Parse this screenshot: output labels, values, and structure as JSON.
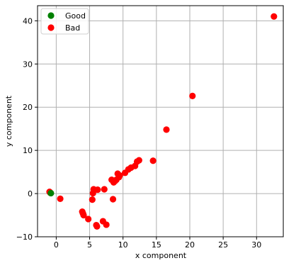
{
  "chart_data": {
    "type": "scatter",
    "xlabel": "x component",
    "ylabel": "y component",
    "xlim": [
      -2.8,
      34.0
    ],
    "ylim": [
      -10,
      43.5
    ],
    "xticks": [
      0,
      5,
      10,
      15,
      20,
      25,
      30
    ],
    "yticks": [
      -10,
      0,
      10,
      20,
      30,
      40
    ],
    "xtick_labels": [
      "0",
      "5",
      "10",
      "15",
      "20",
      "25",
      "30"
    ],
    "ytick_labels": [
      "−10",
      "0",
      "10",
      "20",
      "30",
      "40"
    ],
    "grid": true,
    "legend_position": "top-left",
    "series": [
      {
        "name": "Good",
        "color": "#008000",
        "x": [
          -0.8
        ],
        "y": [
          0.1
        ]
      },
      {
        "name": "Bad",
        "color": "#ff0000",
        "x": [
          -1.0,
          -0.9,
          0.6,
          3.9,
          4.0,
          4.1,
          4.8,
          5.4,
          5.5,
          5.6,
          6.0,
          6.1,
          6.2,
          7.0,
          7.2,
          7.5,
          8.3,
          8.5,
          8.6,
          8.8,
          9.0,
          9.2,
          9.4,
          9.5,
          10.3,
          10.8,
          11.2,
          11.8,
          12.1,
          12.4,
          14.5,
          16.5,
          20.4,
          32.6
        ],
        "y": [
          0.4,
          0.2,
          -1.2,
          -4.2,
          -4.6,
          -5.0,
          -5.9,
          -1.4,
          0.1,
          1.0,
          -7.3,
          -7.6,
          0.9,
          -6.4,
          1.0,
          -7.2,
          3.2,
          -1.3,
          2.6,
          2.9,
          3.2,
          4.6,
          3.8,
          4.2,
          4.8,
          5.6,
          6.0,
          6.4,
          7.4,
          7.7,
          7.6,
          14.8,
          22.6,
          41.0
        ]
      }
    ]
  }
}
